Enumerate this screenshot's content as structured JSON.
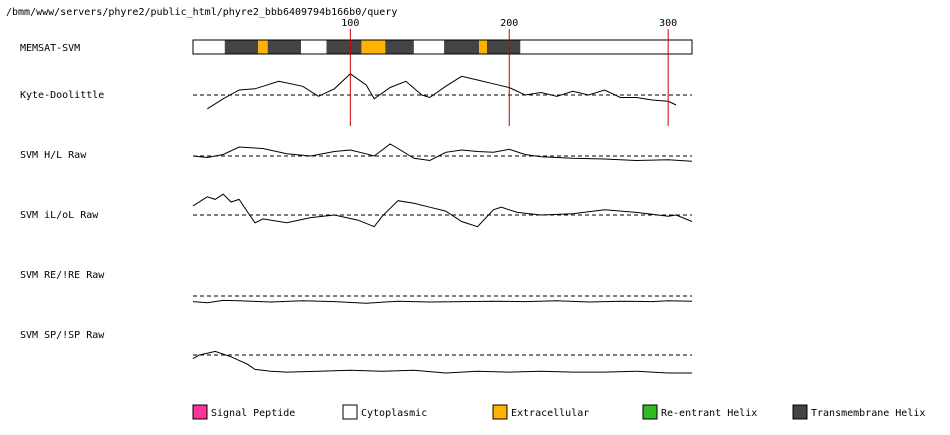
{
  "path_label": "/bmm/www/servers/phyre2/public_html/phyre2_bbb6409794b166b0/query",
  "colors": {
    "signal_peptide": "#ff3399",
    "cytoplasmic": "#ffffff",
    "extracellular": "#ffb300",
    "reentrant_helix": "#33bb22",
    "transmembrane_helix": "#444444",
    "marker_line": "#cc0000",
    "trace": "#000000"
  },
  "chart_data": {
    "type": "line",
    "sequence_length": 315,
    "position_ticks": [
      100,
      200,
      300
    ],
    "memsat_track": {
      "label": "MEMSAT-SVM",
      "segments": [
        {
          "start": 1,
          "end": 21,
          "type": "cytoplasmic"
        },
        {
          "start": 21,
          "end": 42,
          "type": "transmembrane_helix"
        },
        {
          "start": 42,
          "end": 48,
          "type": "extracellular"
        },
        {
          "start": 48,
          "end": 69,
          "type": "transmembrane_helix"
        },
        {
          "start": 69,
          "end": 85,
          "type": "cytoplasmic"
        },
        {
          "start": 85,
          "end": 107,
          "type": "transmembrane_helix"
        },
        {
          "start": 107,
          "end": 122,
          "type": "extracellular"
        },
        {
          "start": 122,
          "end": 140,
          "type": "transmembrane_helix"
        },
        {
          "start": 140,
          "end": 159,
          "type": "cytoplasmic"
        },
        {
          "start": 159,
          "end": 181,
          "type": "transmembrane_helix"
        },
        {
          "start": 181,
          "end": 186,
          "type": "extracellular"
        },
        {
          "start": 186,
          "end": 207,
          "type": "transmembrane_helix"
        },
        {
          "start": 207,
          "end": 315,
          "type": "cytoplasmic"
        }
      ]
    },
    "series": [
      {
        "name": "Kyte-Doolittle",
        "x": [
          10,
          20,
          30,
          40,
          55,
          70,
          80,
          90,
          100,
          110,
          115,
          125,
          135,
          145,
          150,
          160,
          170,
          180,
          190,
          200,
          210,
          220,
          230,
          240,
          250,
          260,
          270,
          280,
          290,
          300,
          305
        ],
        "values": [
          -0.55,
          -0.15,
          0.2,
          0.25,
          0.55,
          0.35,
          -0.05,
          0.25,
          0.85,
          0.4,
          -0.15,
          0.3,
          0.55,
          0.0,
          -0.1,
          0.35,
          0.75,
          0.6,
          0.45,
          0.3,
          0.0,
          0.1,
          -0.05,
          0.15,
          0.0,
          0.2,
          -0.1,
          -0.1,
          -0.2,
          -0.25,
          -0.4
        ]
      },
      {
        "name": "SVM H/L Raw",
        "x": [
          1,
          10,
          20,
          30,
          45,
          60,
          75,
          90,
          100,
          110,
          115,
          125,
          130,
          140,
          150,
          160,
          170,
          180,
          190,
          200,
          210,
          220,
          240,
          260,
          280,
          300,
          315
        ],
        "values": [
          0.0,
          -0.1,
          0.1,
          0.6,
          0.5,
          0.15,
          0.0,
          0.3,
          0.4,
          0.15,
          0.0,
          0.8,
          0.5,
          -0.15,
          -0.3,
          0.25,
          0.4,
          0.3,
          0.25,
          0.45,
          0.1,
          -0.05,
          -0.15,
          -0.2,
          -0.3,
          -0.25,
          -0.35
        ]
      },
      {
        "name": "SVM iL/oL Raw",
        "x": [
          1,
          10,
          15,
          20,
          25,
          30,
          35,
          40,
          45,
          60,
          75,
          90,
          105,
          115,
          120,
          130,
          140,
          150,
          160,
          170,
          180,
          190,
          195,
          205,
          220,
          240,
          260,
          280,
          300,
          305,
          315
        ],
        "values": [
          0.7,
          1.4,
          1.2,
          1.6,
          1.0,
          1.2,
          0.3,
          -0.6,
          -0.3,
          -0.6,
          -0.2,
          0.0,
          -0.4,
          -0.9,
          -0.1,
          1.1,
          0.9,
          0.6,
          0.3,
          -0.5,
          -0.9,
          0.4,
          0.6,
          0.2,
          0.0,
          0.1,
          0.4,
          0.2,
          -0.1,
          0.0,
          -0.5
        ]
      },
      {
        "name": "SVM RE/!RE Raw",
        "x": [
          1,
          10,
          20,
          30,
          50,
          70,
          90,
          110,
          130,
          150,
          170,
          190,
          210,
          230,
          250,
          270,
          290,
          300,
          315
        ],
        "values": [
          -0.7,
          -0.85,
          -0.55,
          -0.6,
          -0.75,
          -0.6,
          -0.7,
          -0.9,
          -0.65,
          -0.75,
          -0.7,
          -0.65,
          -0.7,
          -0.6,
          -0.75,
          -0.65,
          -0.7,
          -0.6,
          -0.65
        ]
      },
      {
        "name": "SVM SP/!SP Raw",
        "x": [
          1,
          5,
          10,
          15,
          20,
          25,
          30,
          35,
          40,
          50,
          60,
          80,
          100,
          120,
          140,
          160,
          180,
          200,
          220,
          240,
          260,
          280,
          300,
          315
        ],
        "values": [
          -0.2,
          0.0,
          0.1,
          0.2,
          0.05,
          -0.1,
          -0.3,
          -0.5,
          -0.8,
          -0.9,
          -0.95,
          -0.9,
          -0.85,
          -0.9,
          -0.85,
          -1.0,
          -0.9,
          -0.95,
          -0.9,
          -0.95,
          -0.95,
          -0.9,
          -1.0,
          -1.0
        ]
      }
    ],
    "legend": [
      {
        "key": "signal_peptide",
        "label": "Signal Peptide"
      },
      {
        "key": "cytoplasmic",
        "label": "Cytoplasmic"
      },
      {
        "key": "extracellular",
        "label": "Extracellular"
      },
      {
        "key": "reentrant_helix",
        "label": "Re-entrant Helix"
      },
      {
        "key": "transmembrane_helix",
        "label": "Transmembrane Helix"
      }
    ],
    "legend_placement": "bottom",
    "grid": false
  }
}
